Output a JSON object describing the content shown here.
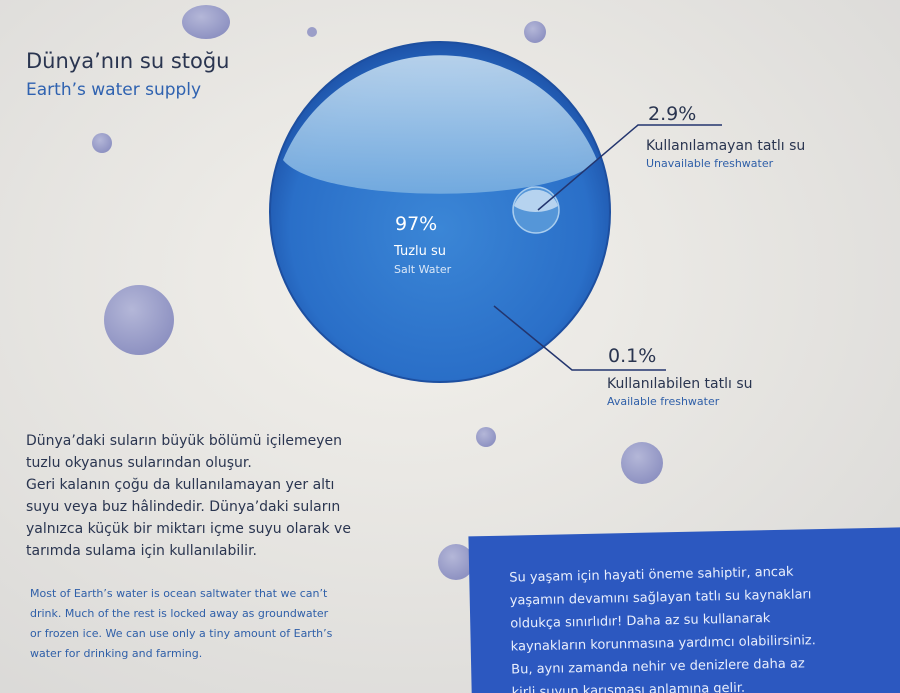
{
  "header": {
    "title": "Dünya’nın su stoğu",
    "subtitle": "Earth’s water supply"
  },
  "globe": {
    "salt": {
      "percent": "97%",
      "label_tr": "Tuzlu su",
      "label_en": "Salt Water"
    },
    "unavailable": {
      "percent": "2.9%",
      "label_tr": "Kullanılamayan tatlı su",
      "label_en": "Unavailable freshwater"
    },
    "available": {
      "percent": "0.1%",
      "label_tr": "Kullanılabilen tatlı su",
      "label_en": "Available freshwater"
    }
  },
  "body_tr": [
    "Dünya’daki suların büyük bölümü içilemeyen",
    "tuzlu okyanus sularından oluşur.",
    "Geri kalanın çoğu da kullanılamayan yer altı",
    "suyu veya buz hâlindedir. Dünya’daki suların",
    "yalnızca küçük bir miktarı içme suyu olarak ve",
    "tarımda sulama için kullanılabilir."
  ],
  "body_en": [
    "Most of Earth’s water is ocean saltwater that we can’t",
    "drink. Much of the rest is locked away as groundwater",
    "or frozen ice. We can use only a tiny amount of Earth’s",
    "water for drinking and farming."
  ],
  "callout": [
    "Su yaşam için hayati öneme sahiptir, ancak",
    "yaşamın devamını sağlayan tatlı su kaynakları",
    "oldukça sınırlıdır! Daha az su kullanarak",
    "kaynakların korunmasına yardımcı olabilirsiniz.",
    "Bu, aynı zamanda nehir ve denizlere daha az",
    "kirli suyun karışması anlamına gelir."
  ]
}
